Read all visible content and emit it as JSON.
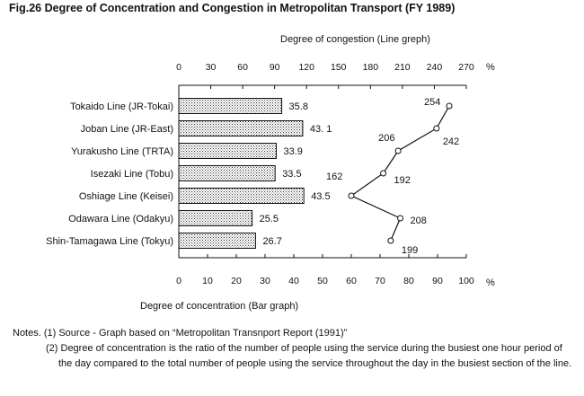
{
  "figure_title": "Fig.26  Degree of Concentration and Congestion in Metropolitan Transport (FY 1989)",
  "chart_data": [
    {
      "type": "bar",
      "orientation": "horizontal",
      "xlabel": "Degree of concentration (Bar graph)",
      "unit": "%",
      "xlim": [
        0,
        100
      ],
      "ticks": [
        0,
        10,
        20,
        30,
        40,
        50,
        60,
        70,
        80,
        90,
        100
      ],
      "categories": [
        "Tokaido Line (JR-Tokai)",
        "Joban Line (JR-East)",
        "Yurakusho Line (TRTA)",
        "Isezaki Line (Tobu)",
        "Oshiage Line (Keisei)",
        "Odawara Line (Odakyu)",
        "Shin-Tamagawa Line (Tokyu)"
      ],
      "values": [
        35.8,
        43.1,
        33.9,
        33.5,
        43.5,
        25.5,
        26.7
      ],
      "value_labels": [
        "35.8",
        "43. 1",
        "33.9",
        "33.5",
        "43.5",
        "25.5",
        "26.7"
      ],
      "fill": "dotted"
    },
    {
      "type": "line",
      "xlabel": "Degree of congestion (Line greph)",
      "unit": "%",
      "xlim": [
        0,
        270
      ],
      "ticks": [
        0,
        30,
        60,
        90,
        120,
        150,
        180,
        210,
        240,
        270
      ],
      "categories": [
        "Tokaido Line (JR-Tokai)",
        "Joban Line (JR-East)",
        "Yurakusho Line (TRTA)",
        "Isezaki Line (Tobu)",
        "Oshiage Line (Keisei)",
        "Odawara Line (Odakyu)",
        "Shin-Tamagawa Line (Tokyu)"
      ],
      "values": [
        254,
        242,
        206,
        192,
        162,
        208,
        199
      ],
      "value_labels": [
        "254",
        "242",
        "206",
        "192",
        "162",
        "208",
        "199"
      ]
    }
  ],
  "notes": [
    "Notes. (1) Source - Graph based on “Metropolitan Transnport Report (1991)”",
    "(2) Degree of concentration is the ratio of the number of people using the service during the busiest one hour period of the day compared to the total number of people using the service throughout the day in the busiest section of the line."
  ]
}
